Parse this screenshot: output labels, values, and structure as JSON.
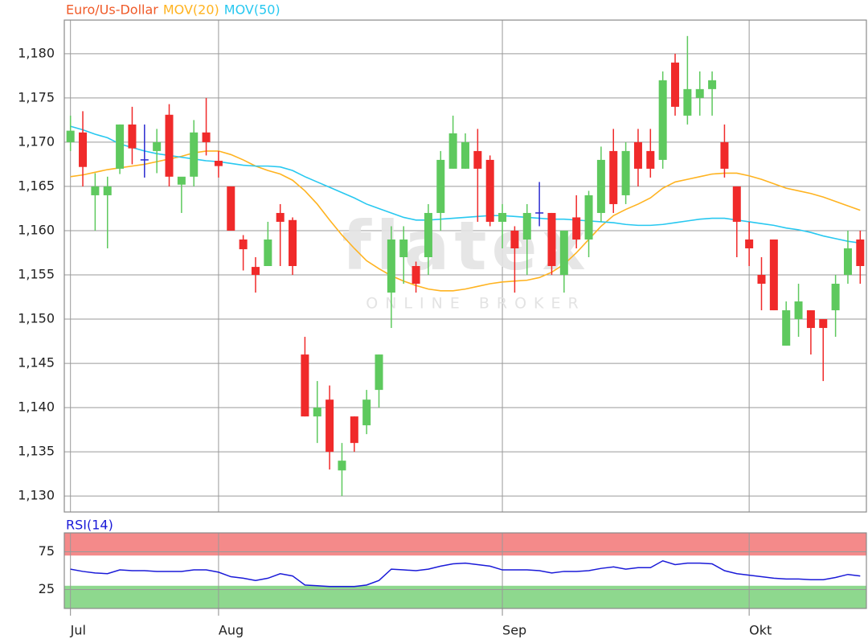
{
  "chart_data": [
    {
      "type": "candlestick",
      "name": "Euro/Us-Dollar",
      "name_color": "#f05a28",
      "watermark": {
        "logo": "flatex",
        "tagline": "ONLINE BROKER"
      },
      "categories": [
        "Jul",
        null,
        null,
        null,
        null,
        null,
        null,
        null,
        null,
        null,
        null,
        null,
        "Aug",
        null,
        null,
        null,
        null,
        null,
        null,
        null,
        null,
        null,
        null,
        null,
        null,
        null,
        null,
        null,
        null,
        null,
        null,
        null,
        null,
        null,
        null,
        "Sep",
        null,
        null,
        null,
        null,
        null,
        null,
        null,
        null,
        null,
        null,
        null,
        null,
        null,
        null,
        null,
        null,
        null,
        null,
        null,
        "Okt",
        null,
        null,
        null,
        null,
        null,
        null,
        null,
        null,
        null
      ],
      "open": [
        1.17,
        1.1711,
        1.164,
        1.164,
        1.167,
        1.172,
        1.168,
        1.169,
        1.1731,
        1.1652,
        1.1661,
        1.1711,
        1.1679,
        1.165,
        1.159,
        1.1559,
        1.156,
        1.162,
        1.1612,
        1.146,
        1.139,
        1.1409,
        1.1329,
        1.139,
        1.138,
        1.142,
        1.153,
        1.157,
        1.156,
        1.157,
        1.162,
        1.167,
        1.167,
        1.169,
        1.168,
        1.161,
        1.16,
        1.159,
        1.162,
        1.162,
        1.155,
        1.1615,
        1.159,
        1.162,
        1.169,
        1.164,
        1.17,
        1.169,
        1.168,
        1.179,
        1.173,
        1.175,
        1.176,
        1.17,
        1.165,
        1.159,
        1.155,
        1.159,
        1.147,
        1.15,
        1.151,
        1.15,
        1.151,
        1.155,
        1.159
      ],
      "high": [
        1.173,
        1.1735,
        1.1665,
        1.1661,
        1.172,
        1.174,
        1.172,
        1.1715,
        1.1743,
        1.166,
        1.1725,
        1.175,
        1.169,
        1.165,
        1.1595,
        1.157,
        1.161,
        1.163,
        1.1615,
        1.148,
        1.143,
        1.1425,
        1.136,
        1.139,
        1.142,
        1.146,
        1.1605,
        1.1605,
        1.1565,
        1.163,
        1.169,
        1.173,
        1.171,
        1.1715,
        1.1685,
        1.163,
        1.1605,
        1.163,
        1.1655,
        1.162,
        1.16,
        1.164,
        1.1645,
        1.1695,
        1.1715,
        1.17,
        1.1715,
        1.1715,
        1.178,
        1.18,
        1.182,
        1.178,
        1.178,
        1.172,
        1.165,
        1.161,
        1.157,
        1.159,
        1.152,
        1.154,
        1.151,
        1.15,
        1.155,
        1.16,
        1.16
      ],
      "low": [
        1.169,
        1.165,
        1.16,
        1.158,
        1.1664,
        1.1675,
        1.166,
        1.1665,
        1.165,
        1.162,
        1.165,
        1.1685,
        1.166,
        1.16,
        1.1555,
        1.153,
        1.156,
        1.156,
        1.155,
        1.139,
        1.136,
        1.133,
        1.13,
        1.135,
        1.137,
        1.14,
        1.149,
        1.154,
        1.153,
        1.155,
        1.16,
        1.167,
        1.167,
        1.161,
        1.1605,
        1.158,
        1.153,
        1.155,
        1.1605,
        1.155,
        1.153,
        1.158,
        1.157,
        1.161,
        1.162,
        1.163,
        1.165,
        1.166,
        1.167,
        1.173,
        1.172,
        1.173,
        1.173,
        1.166,
        1.157,
        1.156,
        1.151,
        1.151,
        1.147,
        1.148,
        1.146,
        1.143,
        1.148,
        1.154,
        1.154
      ],
      "close": [
        1.1713,
        1.1672,
        1.165,
        1.165,
        1.172,
        1.1693,
        1.168,
        1.17,
        1.1661,
        1.1661,
        1.1711,
        1.17,
        1.1673,
        1.16,
        1.1579,
        1.155,
        1.159,
        1.161,
        1.156,
        1.139,
        1.14,
        1.135,
        1.134,
        1.136,
        1.1409,
        1.146,
        1.159,
        1.159,
        1.154,
        1.162,
        1.168,
        1.171,
        1.17,
        1.167,
        1.161,
        1.162,
        1.158,
        1.162,
        1.162,
        1.156,
        1.16,
        1.159,
        1.164,
        1.168,
        1.163,
        1.169,
        1.167,
        1.167,
        1.177,
        1.174,
        1.176,
        1.176,
        1.177,
        1.167,
        1.161,
        1.158,
        1.154,
        1.151,
        1.151,
        1.152,
        1.149,
        1.149,
        1.154,
        1.158,
        1.156
      ],
      "up_color": "#5ec95e",
      "down_color": "#f02a2a",
      "doji_color": "#2a2ad0",
      "series": [
        {
          "name": "MOV(20)",
          "color": "#ffb320",
          "values": [
            1.1661,
            1.1663,
            1.1666,
            1.1669,
            1.1671,
            1.1673,
            1.1675,
            1.1678,
            1.1681,
            1.1684,
            1.1688,
            1.169,
            1.169,
            1.1686,
            1.168,
            1.1673,
            1.1668,
            1.1664,
            1.1657,
            1.1645,
            1.163,
            1.1612,
            1.1595,
            1.158,
            1.1566,
            1.1557,
            1.1549,
            1.1543,
            1.1538,
            1.1534,
            1.1532,
            1.1532,
            1.1534,
            1.1537,
            1.154,
            1.1542,
            1.1543,
            1.1544,
            1.1547,
            1.1553,
            1.1562,
            1.1575,
            1.159,
            1.1605,
            1.1617,
            1.1624,
            1.163,
            1.1637,
            1.1648,
            1.1655,
            1.1658,
            1.1661,
            1.1664,
            1.1665,
            1.1665,
            1.1662,
            1.1658,
            1.1653,
            1.1648,
            1.1645,
            1.1642,
            1.1638,
            1.1633,
            1.1628,
            1.1623
          ]
        },
        {
          "name": "MOV(50)",
          "color": "#28c8f0",
          "values": [
            1.1718,
            1.1714,
            1.1709,
            1.1705,
            1.1698,
            1.1694,
            1.169,
            1.1687,
            1.1685,
            1.1683,
            1.1681,
            1.1679,
            1.1678,
            1.1676,
            1.1674,
            1.1673,
            1.1673,
            1.1672,
            1.1668,
            1.1661,
            1.1655,
            1.1649,
            1.1643,
            1.1637,
            1.163,
            1.1625,
            1.162,
            1.1615,
            1.1612,
            1.1612,
            1.1613,
            1.1614,
            1.1615,
            1.1616,
            1.1617,
            1.1617,
            1.1616,
            1.1615,
            1.1614,
            1.1613,
            1.1613,
            1.1612,
            1.1611,
            1.161,
            1.1609,
            1.1607,
            1.1606,
            1.1606,
            1.1607,
            1.1609,
            1.1611,
            1.1613,
            1.1614,
            1.1614,
            1.1612,
            1.161,
            1.1608,
            1.1606,
            1.1603,
            1.1601,
            1.1598,
            1.1594,
            1.1591,
            1.1588,
            1.1586
          ]
        }
      ],
      "ylim": [
        1.1282,
        1.1838
      ],
      "yticks": [
        {
          "value": 1.13,
          "label": "1,130"
        },
        {
          "value": 1.135,
          "label": "1,135"
        },
        {
          "value": 1.14,
          "label": "1,140"
        },
        {
          "value": 1.145,
          "label": "1,145"
        },
        {
          "value": 1.15,
          "label": "1,150"
        },
        {
          "value": 1.155,
          "label": "1,155"
        },
        {
          "value": 1.16,
          "label": "1,160"
        },
        {
          "value": 1.165,
          "label": "1,165"
        },
        {
          "value": 1.17,
          "label": "1,170"
        },
        {
          "value": 1.175,
          "label": "1,175"
        },
        {
          "value": 1.18,
          "label": "1,180"
        }
      ],
      "grid": true
    },
    {
      "type": "line",
      "series": [
        {
          "name": "RSI(14)",
          "color": "#1a1ad8",
          "values": [
            52,
            49,
            47,
            46,
            51,
            50,
            50,
            49,
            49,
            49,
            51,
            51,
            48,
            42,
            40,
            37,
            40,
            46,
            43,
            31,
            30,
            29,
            29,
            29,
            31,
            37,
            52,
            51,
            50,
            52,
            56,
            59,
            60,
            58,
            56,
            51,
            51,
            51,
            50,
            47,
            49,
            49,
            50,
            53,
            55,
            52,
            54,
            54,
            63,
            58,
            60,
            60,
            59,
            50,
            46,
            44,
            42,
            40,
            39,
            39,
            38,
            38,
            41,
            45,
            43
          ]
        }
      ],
      "zones": [
        {
          "range": [
            70,
            100
          ],
          "color": "#f48a8a"
        },
        {
          "range": [
            0,
            30
          ],
          "color": "#8ed88e"
        }
      ],
      "ylim": [
        0,
        100
      ],
      "yticks": [
        25,
        75
      ],
      "grid": true
    }
  ]
}
